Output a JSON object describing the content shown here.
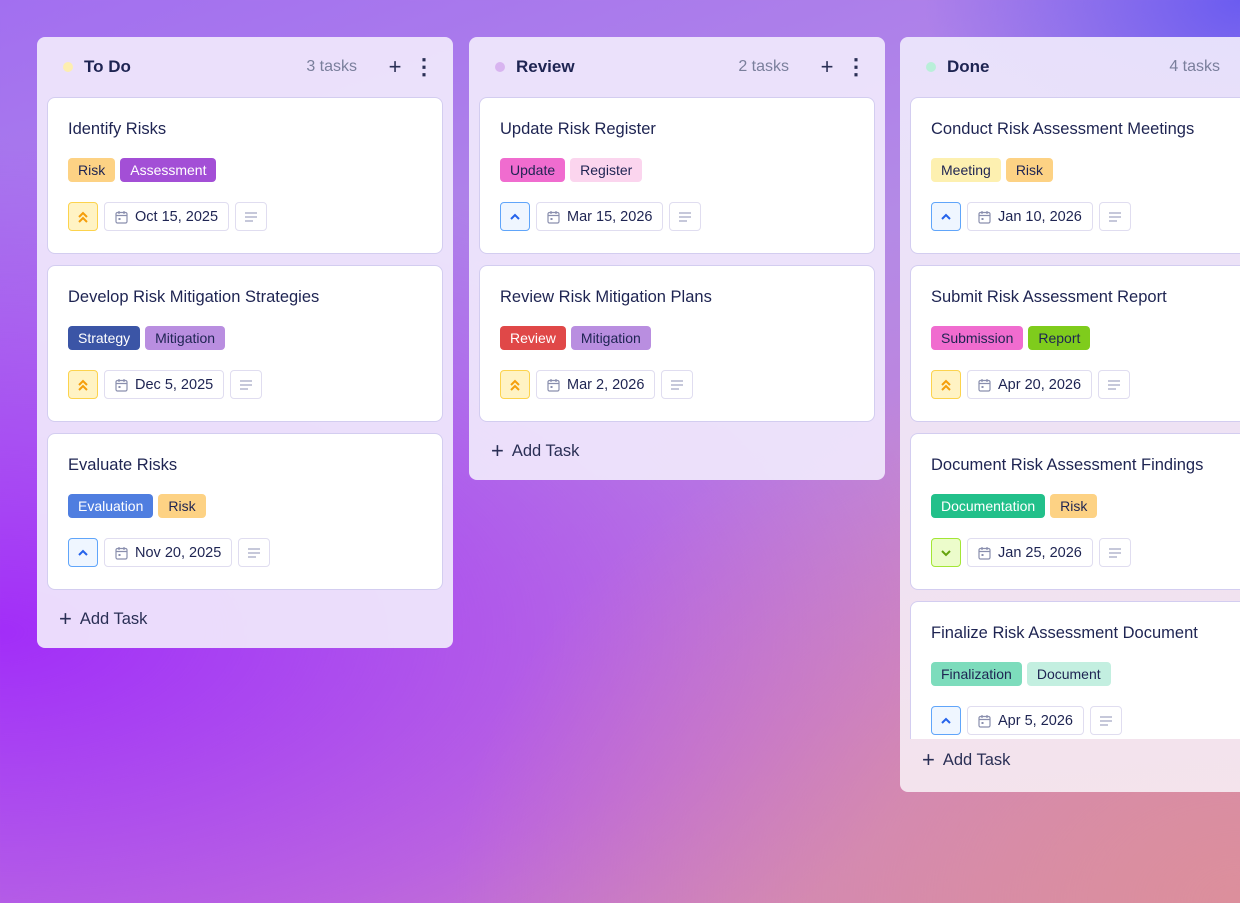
{
  "columns": [
    {
      "id": "todo",
      "title": "To Do",
      "count": "3 tasks",
      "dot_color": "#fdeeb0",
      "show_actions": true,
      "add_label": "Add Task",
      "cards": [
        {
          "title": "Identify Risks",
          "priority": "high",
          "date": "Oct 15, 2025",
          "tags": [
            {
              "label": "Risk",
              "bg": "#fdd284",
              "fg": "#1e2452"
            },
            {
              "label": "Assessment",
              "bg": "#a34fd6",
              "fg": "#ffffff"
            }
          ]
        },
        {
          "title": "Develop Risk Mitigation Strategies",
          "priority": "high",
          "date": "Dec 5, 2025",
          "tags": [
            {
              "label": "Strategy",
              "bg": "#3b55a6",
              "fg": "#ffffff"
            },
            {
              "label": "Mitigation",
              "bg": "#b98ee0",
              "fg": "#1e2452"
            }
          ]
        },
        {
          "title": "Evaluate Risks",
          "priority": "medium",
          "date": "Nov 20, 2025",
          "tags": [
            {
              "label": "Evaluation",
              "bg": "#4f7ee0",
              "fg": "#ffffff"
            },
            {
              "label": "Risk",
              "bg": "#fdd284",
              "fg": "#1e2452"
            }
          ]
        }
      ]
    },
    {
      "id": "review",
      "title": "Review",
      "count": "2 tasks",
      "dot_color": "#d8b4f0",
      "show_actions": true,
      "add_label": "Add Task",
      "cards": [
        {
          "title": "Update Risk Register",
          "priority": "medium",
          "date": "Mar 15, 2026",
          "tags": [
            {
              "label": "Update",
              "bg": "#f06ccf",
              "fg": "#1e2452"
            },
            {
              "label": "Register",
              "bg": "#fbd5ee",
              "fg": "#1e2452"
            }
          ]
        },
        {
          "title": "Review Risk Mitigation Plans",
          "priority": "high",
          "date": "Mar 2, 2026",
          "tags": [
            {
              "label": "Review",
              "bg": "#e04848",
              "fg": "#ffffff"
            },
            {
              "label": "Mitigation",
              "bg": "#b98ee0",
              "fg": "#1e2452"
            }
          ]
        }
      ]
    },
    {
      "id": "done",
      "title": "Done",
      "count": "4 tasks",
      "dot_color": "#b9efd9",
      "show_actions": false,
      "add_label": "Add Task",
      "cards": [
        {
          "title": "Conduct Risk Assessment Meetings",
          "priority": "medium",
          "date": "Jan 10, 2026",
          "tags": [
            {
              "label": "Meeting",
              "bg": "#fdf0b0",
              "fg": "#1e2452"
            },
            {
              "label": "Risk",
              "bg": "#fdd284",
              "fg": "#1e2452"
            }
          ]
        },
        {
          "title": "Submit Risk Assessment Report",
          "priority": "high",
          "date": "Apr 20, 2026",
          "tags": [
            {
              "label": "Submission",
              "bg": "#f06ccf",
              "fg": "#1e2452"
            },
            {
              "label": "Report",
              "bg": "#7fcc1c",
              "fg": "#1e2452"
            }
          ]
        },
        {
          "title": "Document Risk Assessment Findings",
          "priority": "low",
          "date": "Jan 25, 2026",
          "tags": [
            {
              "label": "Documentation",
              "bg": "#22c08a",
              "fg": "#ffffff"
            },
            {
              "label": "Risk",
              "bg": "#fdd284",
              "fg": "#1e2452"
            }
          ]
        },
        {
          "title": "Finalize Risk Assessment Document",
          "priority": "medium",
          "date": "Apr 5, 2026",
          "tags": [
            {
              "label": "Finalization",
              "bg": "#7ddcbc",
              "fg": "#1e2452"
            },
            {
              "label": "Document",
              "bg": "#c3efe0",
              "fg": "#1e2452"
            }
          ]
        }
      ]
    }
  ],
  "priority_styles": {
    "high": {
      "icon": "double-chevron-up-icon",
      "bg": "#fff3c4",
      "border": "#fcd34d",
      "color": "#f59e0b"
    },
    "medium": {
      "icon": "chevron-up-icon",
      "bg": "#eff6ff",
      "border": "#60a5fa",
      "color": "#2563eb"
    },
    "low": {
      "icon": "chevron-down-icon",
      "bg": "#ecfccb",
      "border": "#a3e635",
      "color": "#65a30d"
    }
  }
}
